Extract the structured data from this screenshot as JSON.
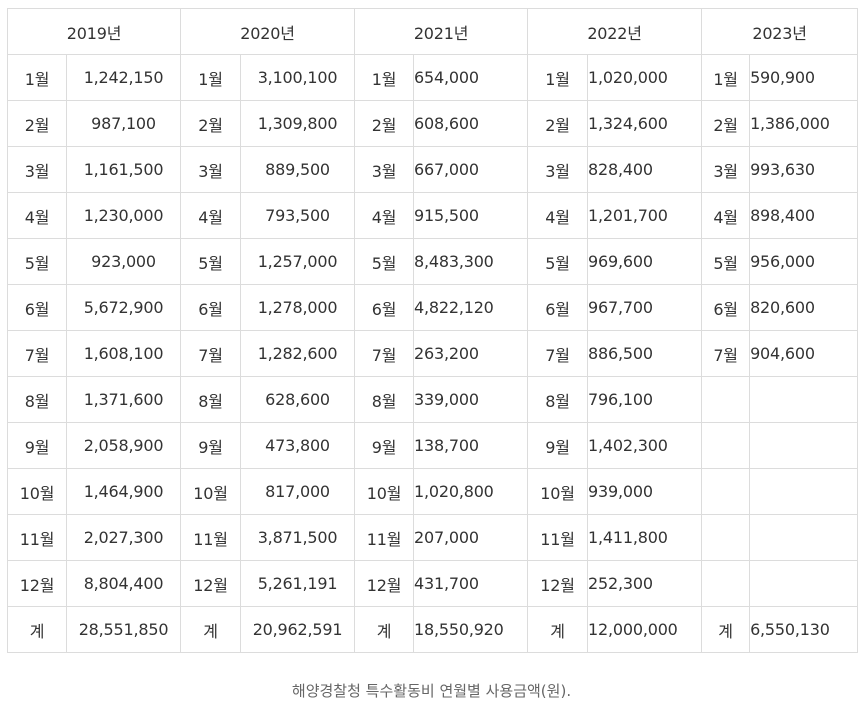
{
  "years": [
    "2019년",
    "2020년",
    "2021년",
    "2022년",
    "2023년"
  ],
  "rows": [
    {
      "cells": [
        [
          "1월",
          "1,242,150"
        ],
        [
          "1월",
          "3,100,100"
        ],
        [
          "1월",
          "654,000"
        ],
        [
          "1월",
          "1,020,000"
        ],
        [
          "1월",
          "590,900"
        ]
      ]
    },
    {
      "cells": [
        [
          "2월",
          "987,100"
        ],
        [
          "2월",
          "1,309,800"
        ],
        [
          "2월",
          "608,600"
        ],
        [
          "2월",
          "1,324,600"
        ],
        [
          "2월",
          "1,386,000"
        ]
      ]
    },
    {
      "cells": [
        [
          "3월",
          "1,161,500"
        ],
        [
          "3월",
          "889,500"
        ],
        [
          "3월",
          "667,000"
        ],
        [
          "3월",
          "828,400"
        ],
        [
          "3월",
          "993,630"
        ]
      ]
    },
    {
      "cells": [
        [
          "4월",
          "1,230,000"
        ],
        [
          "4월",
          "793,500"
        ],
        [
          "4월",
          "915,500"
        ],
        [
          "4월",
          "1,201,700"
        ],
        [
          "4월",
          "898,400"
        ]
      ]
    },
    {
      "cells": [
        [
          "5월",
          "923,000"
        ],
        [
          "5월",
          "1,257,000"
        ],
        [
          "5월",
          "8,483,300"
        ],
        [
          "5월",
          "969,600"
        ],
        [
          "5월",
          "956,000"
        ]
      ]
    },
    {
      "cells": [
        [
          "6월",
          "5,672,900"
        ],
        [
          "6월",
          "1,278,000"
        ],
        [
          "6월",
          "4,822,120"
        ],
        [
          "6월",
          "967,700"
        ],
        [
          "6월",
          "820,600"
        ]
      ]
    },
    {
      "cells": [
        [
          "7월",
          "1,608,100"
        ],
        [
          "7월",
          "1,282,600"
        ],
        [
          "7월",
          "263,200"
        ],
        [
          "7월",
          "886,500"
        ],
        [
          "7월",
          "904,600"
        ]
      ]
    },
    {
      "cells": [
        [
          "8월",
          "1,371,600"
        ],
        [
          "8월",
          "628,600"
        ],
        [
          "8월",
          "339,000"
        ],
        [
          "8월",
          "796,100"
        ],
        [
          "",
          ""
        ]
      ]
    },
    {
      "cells": [
        [
          "9월",
          "2,058,900"
        ],
        [
          "9월",
          "473,800"
        ],
        [
          "9월",
          "138,700"
        ],
        [
          "9월",
          "1,402,300"
        ],
        [
          "",
          ""
        ]
      ]
    },
    {
      "cells": [
        [
          "10월",
          "1,464,900"
        ],
        [
          "10월",
          "817,000"
        ],
        [
          "10월",
          "1,020,800"
        ],
        [
          "10월",
          "939,000"
        ],
        [
          "",
          ""
        ]
      ]
    },
    {
      "cells": [
        [
          "11월",
          "2,027,300"
        ],
        [
          "11월",
          "3,871,500"
        ],
        [
          "11월",
          "207,000"
        ],
        [
          "11월",
          "1,411,800"
        ],
        [
          "",
          ""
        ]
      ]
    },
    {
      "cells": [
        [
          "12월",
          "8,804,400"
        ],
        [
          "12월",
          "5,261,191"
        ],
        [
          "12월",
          "431,700"
        ],
        [
          "12월",
          "252,300"
        ],
        [
          "",
          ""
        ]
      ]
    },
    {
      "cells": [
        [
          "계",
          "28,551,850"
        ],
        [
          "계",
          "20,962,591"
        ],
        [
          "계",
          "18,550,920"
        ],
        [
          "계",
          "12,000,000"
        ],
        [
          "계",
          "6,550,130"
        ]
      ]
    }
  ],
  "caption": "해양경찰청 특수활동비 연월별 사용금액(원)."
}
